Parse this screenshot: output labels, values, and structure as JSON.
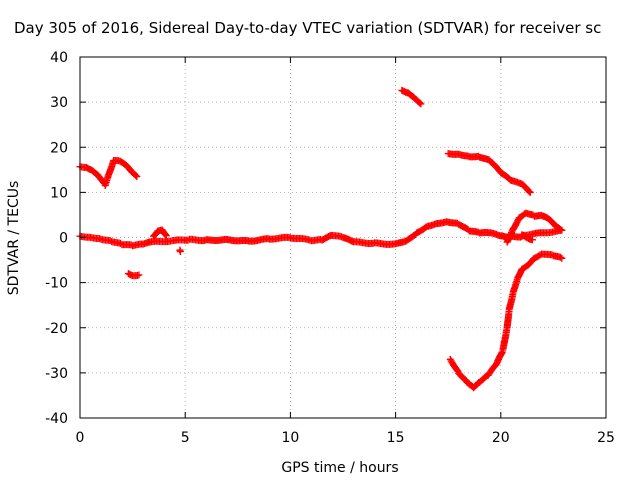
{
  "chart_data": {
    "type": "scatter",
    "title": "Day 305 of 2016, Sidereal Day-to-day VTEC variation (SDTVAR) for receiver sc",
    "xlabel": "GPS time / hours",
    "ylabel": "SDTVAR / TECUs",
    "xlim": [
      0,
      25
    ],
    "ylim": [
      -40,
      40
    ],
    "xticks": [
      0,
      5,
      10,
      15,
      20,
      25
    ],
    "yticks": [
      -40,
      -30,
      -20,
      -10,
      0,
      10,
      20,
      30,
      40
    ],
    "xtick_labels": [
      "0",
      "5",
      "10",
      "15",
      "20",
      "25"
    ],
    "ytick_labels": [
      "-40",
      "-30",
      "-20",
      "-10",
      "0",
      "10",
      "20",
      "30",
      "40"
    ],
    "grid": true,
    "marker": "+",
    "color": "#ff0000",
    "series": [
      {
        "name": "main-band",
        "points": [
          [
            0.0,
            0.3
          ],
          [
            0.5,
            0.1
          ],
          [
            1.0,
            -0.3
          ],
          [
            1.5,
            -0.8
          ],
          [
            2.0,
            -1.5
          ],
          [
            2.5,
            -1.8
          ],
          [
            3.0,
            -1.5
          ],
          [
            3.4,
            -1.0
          ],
          [
            5.2,
            -0.5
          ],
          [
            6.0,
            -0.6
          ],
          [
            7.0,
            -0.5
          ],
          [
            8.0,
            -0.8
          ],
          [
            9.0,
            -0.3
          ],
          [
            10.0,
            0.0
          ],
          [
            11.0,
            -0.6
          ],
          [
            11.5,
            -0.5
          ],
          [
            12.0,
            0.5
          ],
          [
            12.5,
            0.0
          ],
          [
            13.0,
            -1.0
          ],
          [
            14.0,
            -1.3
          ],
          [
            15.0,
            -1.5
          ],
          [
            15.6,
            -0.5
          ],
          [
            16.0,
            1.0
          ],
          [
            16.5,
            2.5
          ],
          [
            17.0,
            3.2
          ],
          [
            17.5,
            3.5
          ],
          [
            18.0,
            3.0
          ],
          [
            18.5,
            1.5
          ],
          [
            19.0,
            1.0
          ],
          [
            19.5,
            1.0
          ],
          [
            20.0,
            0.3
          ],
          [
            20.3,
            0.0
          ],
          [
            20.5,
            0.2
          ],
          [
            21.0,
            0.2
          ]
        ]
      },
      {
        "name": "early-upper-arc",
        "points": [
          [
            0.0,
            15.7
          ],
          [
            0.3,
            15.6
          ],
          [
            0.6,
            14.9
          ],
          [
            0.9,
            13.6
          ],
          [
            1.2,
            11.6
          ],
          [
            1.6,
            17.1
          ],
          [
            1.9,
            16.9
          ],
          [
            2.2,
            15.9
          ],
          [
            2.5,
            14.3
          ],
          [
            2.7,
            13.5
          ]
        ]
      },
      {
        "name": "early-lower-segment",
        "points": [
          [
            2.3,
            -8.0
          ],
          [
            2.5,
            -8.4
          ],
          [
            2.8,
            -8.3
          ]
        ]
      },
      {
        "name": "early-spike",
        "points": [
          [
            3.5,
            0.3
          ],
          [
            3.7,
            1.5
          ],
          [
            3.9,
            1.8
          ],
          [
            4.1,
            0.4
          ]
        ]
      },
      {
        "name": "isolated",
        "points": [
          [
            4.75,
            -2.8
          ],
          [
            4.77,
            -3.1
          ]
        ]
      },
      {
        "name": "high-arc",
        "points": [
          [
            15.3,
            32.6
          ],
          [
            15.6,
            32.1
          ],
          [
            15.9,
            31.0
          ],
          [
            16.2,
            29.6
          ]
        ]
      },
      {
        "name": "late-upper-arc",
        "points": [
          [
            17.5,
            18.6
          ],
          [
            18.0,
            18.5
          ],
          [
            18.5,
            18.0
          ],
          [
            19.0,
            17.9
          ],
          [
            19.5,
            17.0
          ],
          [
            20.0,
            14.4
          ],
          [
            20.5,
            12.6
          ],
          [
            21.0,
            11.8
          ],
          [
            21.4,
            10.0
          ]
        ]
      },
      {
        "name": "late-dip",
        "points": [
          [
            17.6,
            -27.0
          ],
          [
            18.0,
            -30.0
          ],
          [
            18.4,
            -32.0
          ],
          [
            18.7,
            -33.2
          ],
          [
            19.0,
            -32.0
          ],
          [
            19.4,
            -30.5
          ],
          [
            19.8,
            -28.0
          ],
          [
            20.1,
            -25.0
          ],
          [
            20.3,
            -20.0
          ],
          [
            20.4,
            -16.0
          ],
          [
            20.6,
            -12.0
          ],
          [
            20.8,
            -9.0
          ],
          [
            21.0,
            -7.0
          ],
          [
            21.3,
            -6.0
          ],
          [
            21.6,
            -4.5
          ],
          [
            22.0,
            -3.6
          ],
          [
            22.5,
            -4.0
          ],
          [
            22.9,
            -4.6
          ]
        ]
      },
      {
        "name": "late-middle",
        "points": [
          [
            20.3,
            -1.0
          ],
          [
            20.6,
            2.0
          ],
          [
            20.9,
            4.5
          ],
          [
            21.2,
            5.5
          ],
          [
            21.6,
            4.8
          ],
          [
            22.0,
            4.8
          ],
          [
            22.3,
            4.0
          ],
          [
            22.6,
            2.5
          ],
          [
            22.9,
            1.5
          ],
          [
            21.0,
            0.5
          ],
          [
            21.5,
            -0.5
          ]
        ]
      }
    ]
  }
}
